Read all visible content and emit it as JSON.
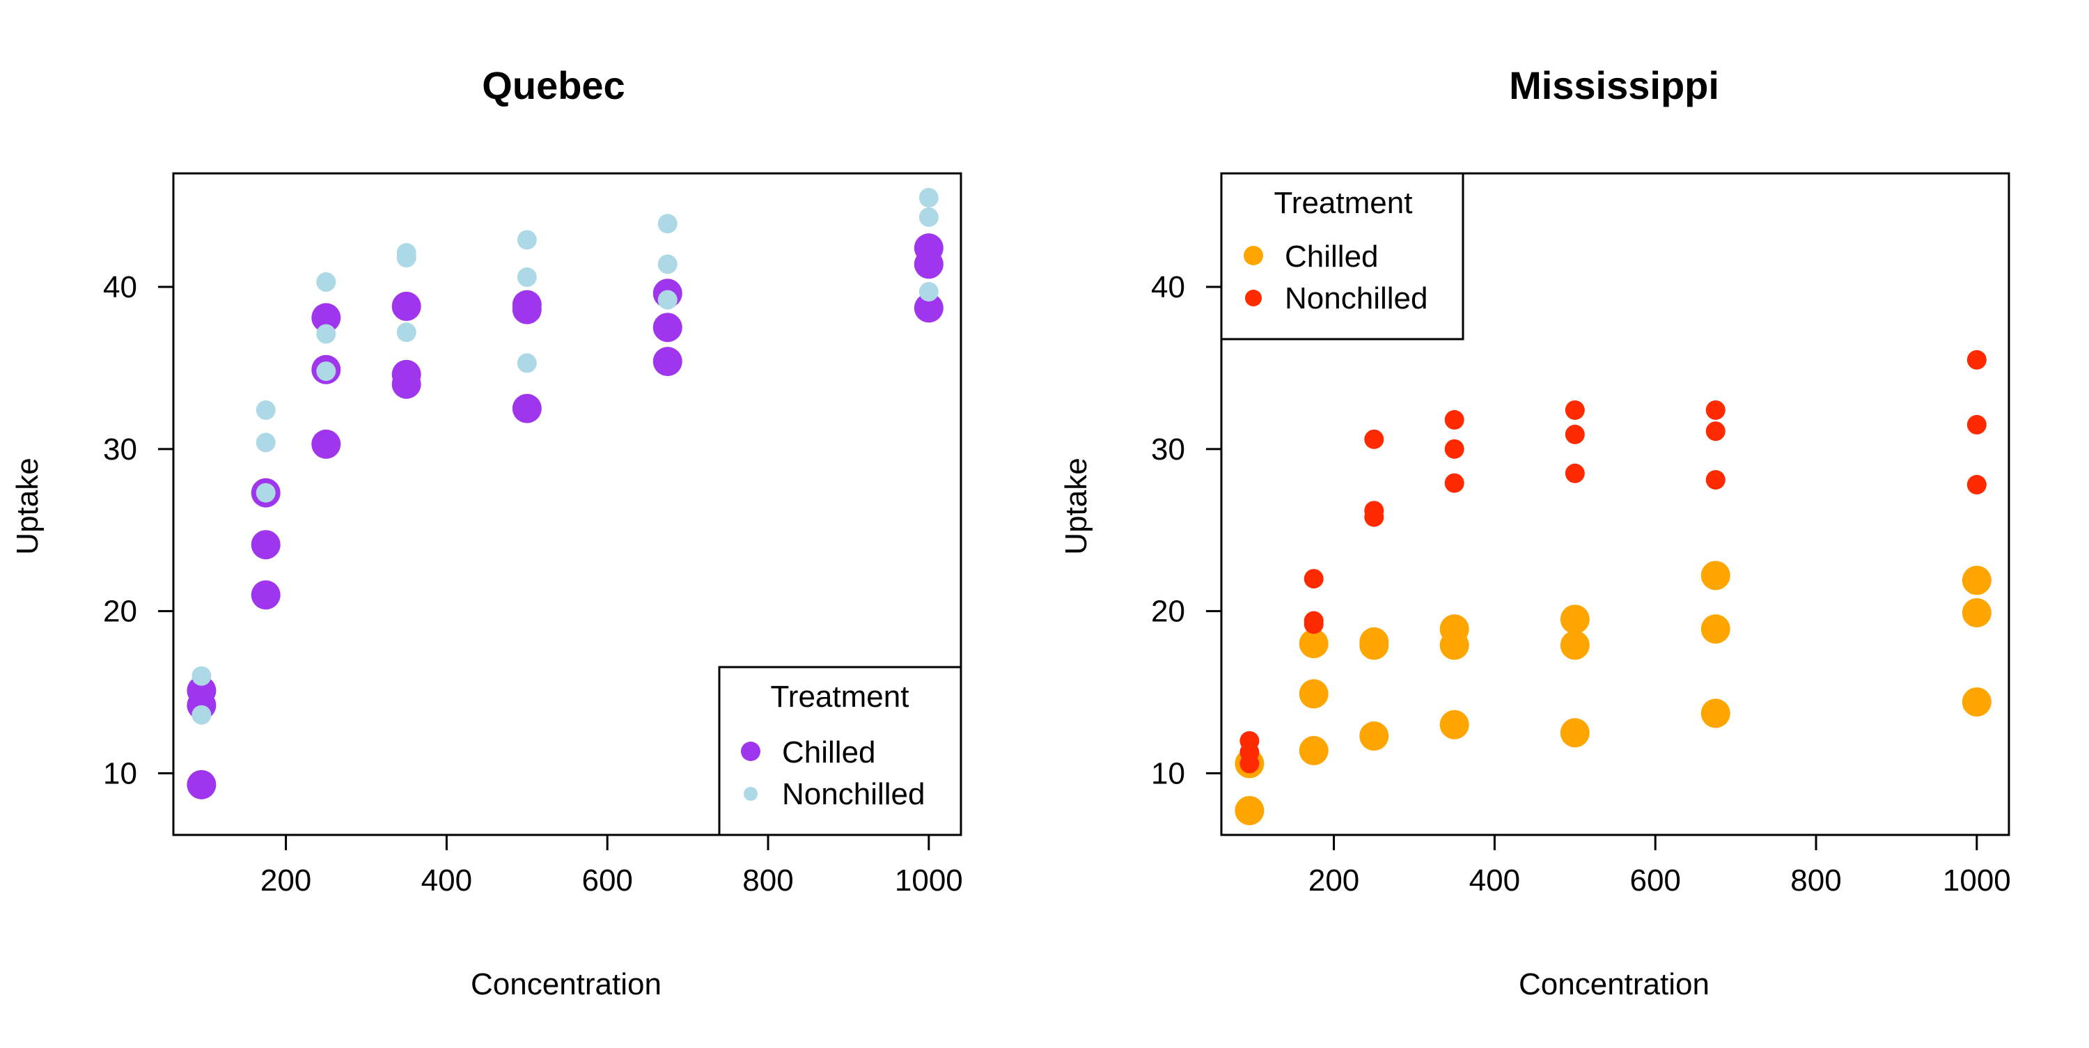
{
  "chart_data": [
    {
      "type": "scatter",
      "title": "Quebec",
      "xlabel": "Concentration",
      "ylabel": "Uptake",
      "xlim": [
        60,
        1040
      ],
      "ylim": [
        6.2,
        47
      ],
      "x_ticks": [
        200,
        400,
        600,
        800,
        1000
      ],
      "y_ticks": [
        10,
        20,
        30,
        40
      ],
      "grid": false,
      "legend": {
        "title": "Treatment",
        "position": "bottom-right",
        "entries": [
          "Chilled",
          "Nonchilled"
        ]
      },
      "series": [
        {
          "name": "Chilled",
          "color": "#A035EE",
          "size": "large",
          "x": [
            95,
            95,
            95,
            175,
            175,
            175,
            250,
            250,
            250,
            350,
            350,
            350,
            500,
            500,
            500,
            675,
            675,
            675,
            1000,
            1000,
            1000
          ],
          "y": [
            15.1,
            14.2,
            9.3,
            27.3,
            24.1,
            21.0,
            38.1,
            34.9,
            30.3,
            38.8,
            34.6,
            34.0,
            38.9,
            38.6,
            32.5,
            39.6,
            37.5,
            35.4,
            42.4,
            41.4,
            38.7
          ]
        },
        {
          "name": "Nonchilled",
          "color": "#ADD8E6",
          "size": "small",
          "x": [
            95,
            95,
            175,
            175,
            175,
            250,
            250,
            250,
            350,
            350,
            350,
            500,
            500,
            500,
            675,
            675,
            675,
            1000,
            1000,
            1000
          ],
          "y": [
            16.0,
            13.6,
            32.4,
            30.4,
            27.3,
            40.3,
            37.1,
            34.8,
            42.1,
            41.8,
            37.2,
            42.9,
            40.6,
            35.3,
            43.9,
            41.4,
            39.2,
            45.5,
            44.3,
            39.7
          ]
        }
      ]
    },
    {
      "type": "scatter",
      "title": "Mississippi",
      "xlabel": "Concentration",
      "ylabel": "Uptake",
      "xlim": [
        60,
        1040
      ],
      "ylim": [
        6.2,
        47
      ],
      "x_ticks": [
        200,
        400,
        600,
        800,
        1000
      ],
      "y_ticks": [
        10,
        20,
        30,
        40
      ],
      "grid": false,
      "legend": {
        "title": "Treatment",
        "position": "top-left",
        "entries": [
          "Chilled",
          "Nonchilled"
        ]
      },
      "series": [
        {
          "name": "Chilled",
          "color": "#FFA500",
          "size": "large",
          "x": [
            95,
            95,
            175,
            175,
            175,
            250,
            250,
            250,
            350,
            350,
            350,
            500,
            500,
            500,
            675,
            675,
            675,
            1000,
            1000,
            1000
          ],
          "y": [
            10.6,
            7.7,
            18.0,
            14.9,
            11.4,
            18.1,
            17.9,
            12.3,
            18.9,
            17.9,
            13.0,
            19.5,
            17.9,
            12.5,
            22.2,
            18.9,
            13.7,
            21.9,
            19.9,
            14.4
          ]
        },
        {
          "name": "Nonchilled",
          "color": "#FF2A00",
          "size": "small",
          "x": [
            95,
            95,
            95,
            175,
            175,
            175,
            250,
            250,
            250,
            350,
            350,
            350,
            500,
            500,
            500,
            675,
            675,
            675,
            1000,
            1000,
            1000
          ],
          "y": [
            12.0,
            11.3,
            10.6,
            22.0,
            19.4,
            19.2,
            30.6,
            26.2,
            25.8,
            31.8,
            30.0,
            27.9,
            32.4,
            30.9,
            28.5,
            32.4,
            31.1,
            28.1,
            35.5,
            31.5,
            27.8
          ]
        }
      ]
    }
  ]
}
